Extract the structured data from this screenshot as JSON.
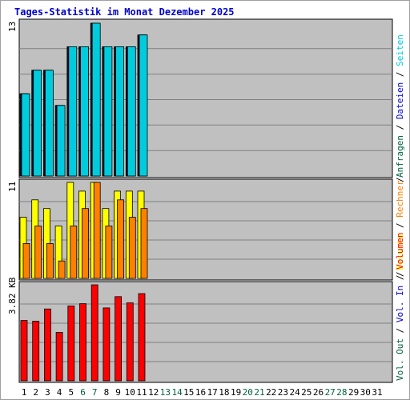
{
  "chart_data": [
    {
      "type": "bar",
      "title": "Tages-Statistik im Monat Dezember 2025",
      "ytick_label": "13",
      "ylim": [
        0,
        13
      ],
      "categories": [
        1,
        2,
        3,
        4,
        5,
        6,
        7,
        8,
        9,
        10,
        11,
        12,
        13,
        14,
        15,
        16,
        17,
        18,
        19,
        20,
        21,
        22,
        23,
        24,
        25,
        26,
        27,
        28,
        29,
        30,
        31
      ],
      "series": [
        {
          "name": "Anfragen",
          "color": "#006040",
          "values": [
            7,
            9,
            9,
            6,
            11,
            11,
            13,
            11,
            11,
            11,
            12,
            0,
            0,
            0,
            0,
            0,
            0,
            0,
            0,
            0,
            0,
            0,
            0,
            0,
            0,
            0,
            0,
            0,
            0,
            0,
            0
          ]
        },
        {
          "name": "Dateien",
          "color": "#0000cc",
          "values": [
            7,
            9,
            9,
            6,
            11,
            11,
            13,
            11,
            11,
            11,
            12,
            0,
            0,
            0,
            0,
            0,
            0,
            0,
            0,
            0,
            0,
            0,
            0,
            0,
            0,
            0,
            0,
            0,
            0,
            0,
            0
          ]
        },
        {
          "name": "Seiten",
          "color": "#00ccdd",
          "values": [
            7,
            9,
            9,
            6,
            11,
            11,
            13,
            11,
            11,
            11,
            12,
            0,
            0,
            0,
            0,
            0,
            0,
            0,
            0,
            0,
            0,
            0,
            0,
            0,
            0,
            0,
            0,
            0,
            0,
            0,
            0
          ]
        }
      ]
    },
    {
      "type": "bar",
      "ytick_label": "11",
      "ylim": [
        0,
        11
      ],
      "categories": [
        1,
        2,
        3,
        4,
        5,
        6,
        7,
        8,
        9,
        10,
        11,
        12,
        13,
        14,
        15,
        16,
        17,
        18,
        19,
        20,
        21,
        22,
        23,
        24,
        25,
        26,
        27,
        28,
        29,
        30,
        31
      ],
      "series": [
        {
          "name": "Besuche",
          "color": "#ffff00",
          "values": [
            7,
            9,
            8,
            6,
            11,
            10,
            11,
            8,
            10,
            10,
            10,
            0,
            0,
            0,
            0,
            0,
            0,
            0,
            0,
            0,
            0,
            0,
            0,
            0,
            0,
            0,
            0,
            0,
            0,
            0,
            0
          ]
        },
        {
          "name": "Rechner",
          "color": "#ff8000",
          "values": [
            4,
            6,
            4,
            2,
            6,
            8,
            11,
            6,
            9,
            7,
            8,
            0,
            0,
            0,
            0,
            0,
            0,
            0,
            0,
            0,
            0,
            0,
            0,
            0,
            0,
            0,
            0,
            0,
            0,
            0,
            0
          ]
        }
      ]
    },
    {
      "type": "bar",
      "ytick_label": "3.82 KB",
      "ylim": [
        0,
        3.82
      ],
      "categories": [
        1,
        2,
        3,
        4,
        5,
        6,
        7,
        8,
        9,
        10,
        11,
        12,
        13,
        14,
        15,
        16,
        17,
        18,
        19,
        20,
        21,
        22,
        23,
        24,
        25,
        26,
        27,
        28,
        29,
        30,
        31
      ],
      "series": [
        {
          "name": "Volumen",
          "color": "#ff0000",
          "values": [
            2.4,
            2.37,
            2.86,
            1.93,
            2.98,
            3.07,
            3.82,
            2.9,
            3.35,
            3.1,
            3.47,
            0,
            0,
            0,
            0,
            0,
            0,
            0,
            0,
            0,
            0,
            0,
            0,
            0,
            0,
            0,
            0,
            0,
            0,
            0,
            0
          ]
        }
      ],
      "legend_extra": [
        {
          "name": "Vol. In",
          "color": "#0000cc"
        },
        {
          "name": "Vol. Out",
          "color": "#006040"
        }
      ]
    }
  ],
  "x_labels": [
    {
      "text": "1",
      "weekend": false
    },
    {
      "text": "2",
      "weekend": false
    },
    {
      "text": "3",
      "weekend": false
    },
    {
      "text": "4",
      "weekend": false
    },
    {
      "text": "5",
      "weekend": false
    },
    {
      "text": "6",
      "weekend": true
    },
    {
      "text": "7",
      "weekend": true
    },
    {
      "text": "8",
      "weekend": false
    },
    {
      "text": "9",
      "weekend": false
    },
    {
      "text": "10",
      "weekend": false
    },
    {
      "text": "11",
      "weekend": false
    },
    {
      "text": "12",
      "weekend": false
    },
    {
      "text": "13",
      "weekend": true
    },
    {
      "text": "14",
      "weekend": true
    },
    {
      "text": "15",
      "weekend": false
    },
    {
      "text": "16",
      "weekend": false
    },
    {
      "text": "17",
      "weekend": false
    },
    {
      "text": "18",
      "weekend": false
    },
    {
      "text": "19",
      "weekend": false
    },
    {
      "text": "20",
      "weekend": true
    },
    {
      "text": "21",
      "weekend": true
    },
    {
      "text": "22",
      "weekend": false
    },
    {
      "text": "23",
      "weekend": false
    },
    {
      "text": "24",
      "weekend": false
    },
    {
      "text": "25",
      "weekend": false
    },
    {
      "text": "26",
      "weekend": false
    },
    {
      "text": "27",
      "weekend": true
    },
    {
      "text": "28",
      "weekend": true
    },
    {
      "text": "29",
      "weekend": false
    },
    {
      "text": "30",
      "weekend": false
    },
    {
      "text": "31",
      "weekend": false
    }
  ],
  "colors": {
    "title": "#0000cc",
    "panel_bg": "#c0c0c0",
    "grid": "#808080",
    "weekend_label": "#006040",
    "weekday_label": "#000000",
    "separator": "#000000"
  },
  "right_legend_top": [
    {
      "text": "Anfragen",
      "color": "#006040"
    },
    {
      "text": "Dateien",
      "color": "#0000cc"
    },
    {
      "text": "Seiten",
      "color": "#00ccdd"
    }
  ],
  "right_legend_mid": [
    {
      "text": "Besuche",
      "color": "#ffff00"
    },
    {
      "text": "Rechner",
      "color": "#ff8000"
    }
  ],
  "right_legend_bottom": [
    {
      "text": "Vol. Out",
      "color": "#006040"
    },
    {
      "text": "Vol. In",
      "color": "#0000cc"
    },
    {
      "text": "Volumen",
      "color": "#ff0000"
    }
  ],
  "separator": "/"
}
